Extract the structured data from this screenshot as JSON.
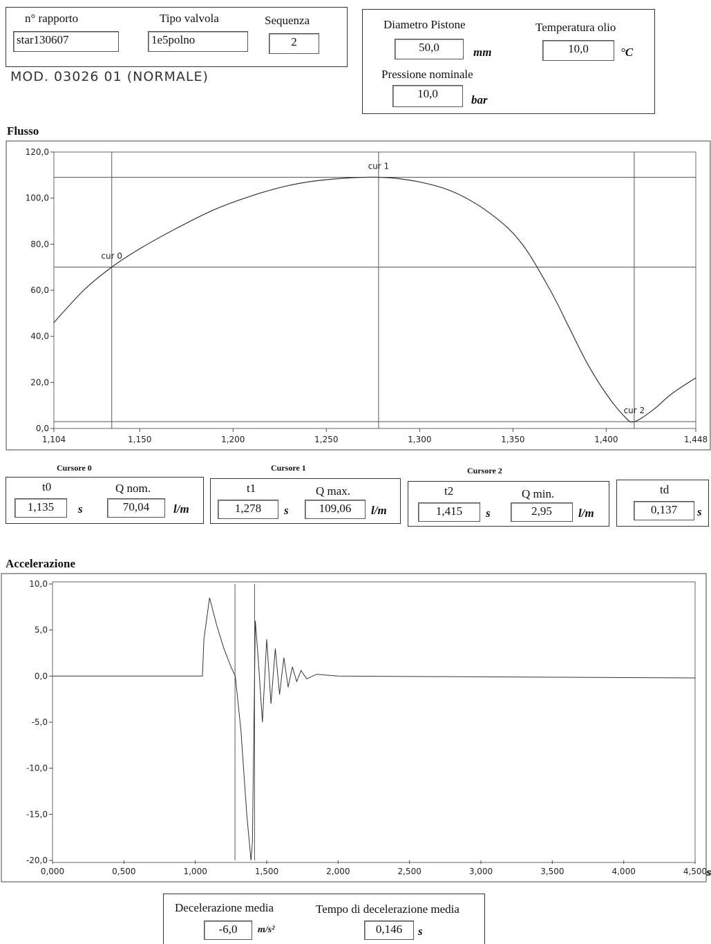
{
  "header": {
    "rapporto_label": "n° rapporto",
    "rapporto_value": "star130607",
    "tipo_label": "Tipo valvola",
    "tipo_value": "1e5polno",
    "sequenza_label": "Sequenza",
    "sequenza_value": "2",
    "handwritten_note": "MOD. 03026 01 (NORMALE)"
  },
  "params": {
    "diametro_label": "Diametro Pistone",
    "diametro_value": "50,0",
    "diametro_unit": "mm",
    "temp_label": "Temperatura olio",
    "temp_value": "10,0",
    "temp_unit": "°C",
    "pressione_label": "Pressione nominale",
    "pressione_value": "10,0",
    "pressione_unit": "bar"
  },
  "flow_section": {
    "title": "Flusso"
  },
  "cursors": {
    "c0": {
      "title": "Cursore 0",
      "t_label": "t0",
      "t_value": "1,135",
      "t_unit": "s",
      "q_label": "Q nom.",
      "q_value": "70,04",
      "q_unit": "l/m"
    },
    "c1": {
      "title": "Cursore 1",
      "t_label": "t1",
      "t_value": "1,278",
      "t_unit": "s",
      "q_label": "Q max.",
      "q_value": "109,06",
      "q_unit": "l/m"
    },
    "c2": {
      "title": "Cursore 2",
      "t_label": "t2",
      "t_value": "1,415",
      "t_unit": "s",
      "q_label": "Q min.",
      "q_value": "2,95",
      "q_unit": "l/m"
    },
    "td": {
      "label": "td",
      "value": "0,137",
      "unit": "s"
    }
  },
  "accel_section": {
    "title": "Accelerazione"
  },
  "footer": {
    "decel_label": "Decelerazione media",
    "decel_value": "-6,0",
    "decel_unit": "m/s²",
    "tempo_label": "Tempo di decelerazione media",
    "tempo_value": "0,146",
    "tempo_unit": "s"
  },
  "chart_data": [
    {
      "type": "line",
      "title": "Flusso",
      "xlabel": "",
      "ylabel": "",
      "xlim": [
        1.104,
        1.448
      ],
      "ylim": [
        0,
        120
      ],
      "x_ticks": [
        "1,104",
        "1,150",
        "1,200",
        "1,250",
        "1,300",
        "1,350",
        "1,400",
        "1,448"
      ],
      "y_ticks": [
        "0,0",
        "20,0",
        "40,0",
        "60,0",
        "80,0",
        "100,0",
        "120,0"
      ],
      "grid": false,
      "cursors": [
        {
          "name": "cur 0",
          "x": 1.135,
          "y": 70.04
        },
        {
          "name": "cur 1",
          "x": 1.278,
          "y": 109.06
        },
        {
          "name": "cur 2",
          "x": 1.415,
          "y": 2.95
        }
      ],
      "series": [
        {
          "x": [
            1.104,
            1.12,
            1.135,
            1.15,
            1.17,
            1.19,
            1.21,
            1.23,
            1.25,
            1.278,
            1.3,
            1.32,
            1.34,
            1.355,
            1.37,
            1.38,
            1.39,
            1.4,
            1.41,
            1.415,
            1.425,
            1.435,
            1.448
          ],
          "values": [
            46,
            60,
            70.04,
            78,
            87,
            95,
            101,
            105.5,
            108,
            109.06,
            107,
            102,
            92,
            80,
            60,
            44,
            28,
            15,
            5,
            2.95,
            8,
            15,
            22
          ]
        }
      ]
    },
    {
      "type": "line",
      "title": "Accelerazione",
      "xlabel": "",
      "ylabel": "",
      "xlim": [
        0,
        4.5
      ],
      "ylim": [
        -20,
        10
      ],
      "x_ticks": [
        "0,000",
        "0,500",
        "1,000",
        "1,500",
        "2,000",
        "2,500",
        "3,000",
        "3,500",
        "4,000",
        "4,500"
      ],
      "x_unit": "s",
      "y_ticks": [
        "-20,0",
        "-15,0",
        "-10,0",
        "-5,0",
        "0,0",
        "5,0",
        "10,0"
      ],
      "grid": false,
      "cursors": [
        {
          "x": 1.278
        },
        {
          "x": 1.415
        }
      ],
      "series": [
        {
          "x": [
            0,
            1.05,
            1.06,
            1.1,
            1.15,
            1.2,
            1.25,
            1.28,
            1.32,
            1.36,
            1.39,
            1.4,
            1.42,
            1.44,
            1.47,
            1.5,
            1.53,
            1.56,
            1.59,
            1.62,
            1.65,
            1.68,
            1.71,
            1.74,
            1.78,
            1.85,
            2.0,
            4.5
          ],
          "values": [
            0,
            0,
            4,
            8.5,
            5.5,
            3,
            1,
            0,
            -6,
            -15,
            -20,
            -18,
            6,
            2,
            -5,
            4,
            -3,
            3,
            -2,
            2,
            -1.2,
            1,
            -0.6,
            0.6,
            -0.3,
            0.2,
            0,
            -0.2
          ]
        }
      ]
    }
  ]
}
